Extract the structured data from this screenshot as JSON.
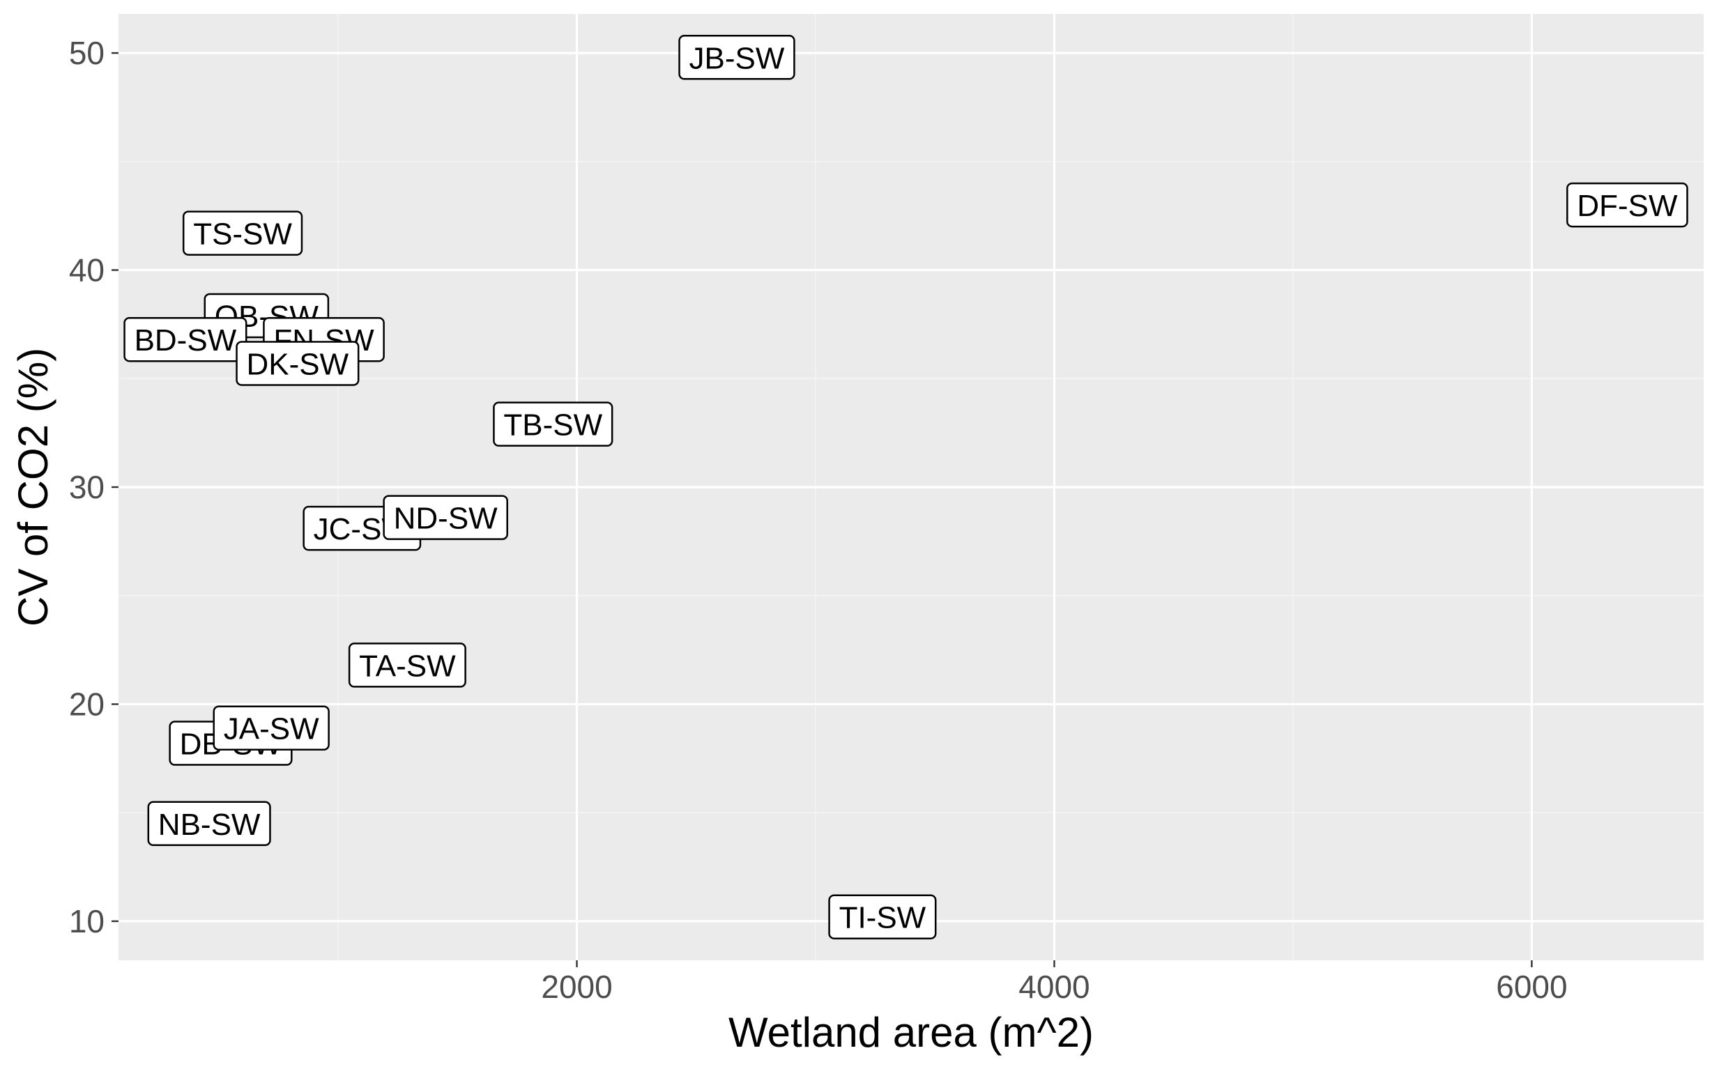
{
  "chart_data": {
    "type": "scatter",
    "title": "",
    "xlabel": "Wetland area (m^2)",
    "ylabel": "CV of CO2 (%)",
    "xlim": [
      80,
      6720
    ],
    "ylim": [
      8.2,
      51.8
    ],
    "x_ticks": [
      2000,
      4000,
      6000
    ],
    "y_ticks": [
      10,
      20,
      30,
      40,
      50
    ],
    "x_tick_labels": [
      "2000",
      "4000",
      "6000"
    ],
    "y_tick_labels": [
      "10",
      "20",
      "30",
      "40",
      "50"
    ],
    "grid": true,
    "legend": "none",
    "points": [
      {
        "label": "JB-SW",
        "x": 2670,
        "y": 49.8
      },
      {
        "label": "DF-SW",
        "x": 6400,
        "y": 43.0
      },
      {
        "label": "TS-SW",
        "x": 600,
        "y": 41.7
      },
      {
        "label": "QB-SW",
        "x": 700,
        "y": 37.9
      },
      {
        "label": "BD-SW",
        "x": 360,
        "y": 36.8
      },
      {
        "label": "FN-SW",
        "x": 940,
        "y": 36.8
      },
      {
        "label": "DK-SW",
        "x": 830,
        "y": 35.7
      },
      {
        "label": "TB-SW",
        "x": 1900,
        "y": 32.9
      },
      {
        "label": "JC-SW",
        "x": 1100,
        "y": 28.1
      },
      {
        "label": "ND-SW",
        "x": 1450,
        "y": 28.6
      },
      {
        "label": "TA-SW",
        "x": 1290,
        "y": 21.8
      },
      {
        "label": "DB-SW",
        "x": 550,
        "y": 18.2
      },
      {
        "label": "JA-SW",
        "x": 720,
        "y": 18.9
      },
      {
        "label": "NB-SW",
        "x": 460,
        "y": 14.5
      },
      {
        "label": "TI-SW",
        "x": 3280,
        "y": 10.2
      }
    ]
  },
  "colors": {
    "panel_background": "#ebebeb",
    "grid_major": "#ffffff",
    "grid_minor": "#f4f4f4",
    "tick_text": "#4d4d4d",
    "label_border": "#000000",
    "label_fill": "#ffffff"
  }
}
